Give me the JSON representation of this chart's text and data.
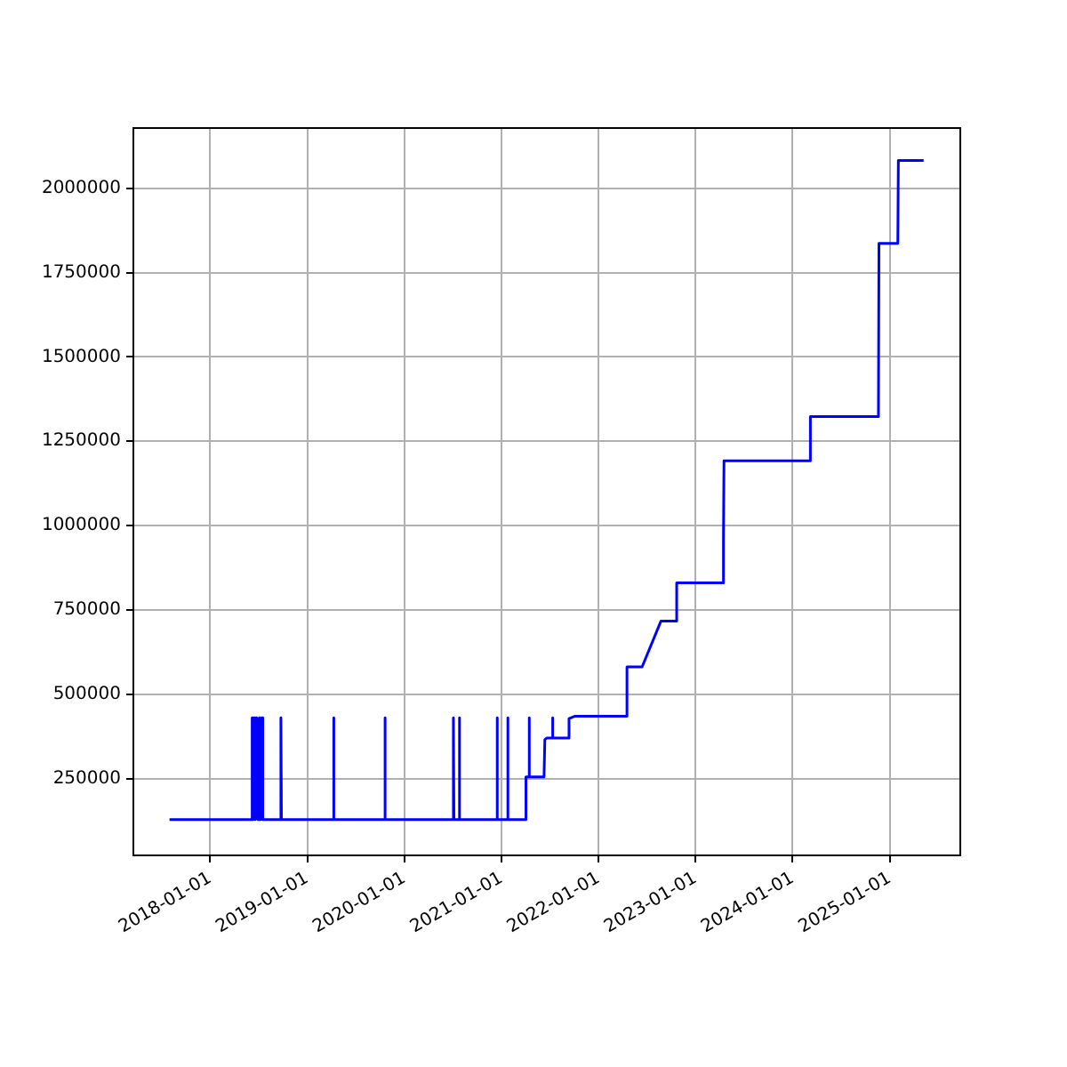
{
  "chart_data": {
    "type": "line",
    "x": [
      "2017-08-01",
      "2018-06-08",
      "2018-06-08",
      "2018-06-12",
      "2018-06-16",
      "2018-06-20",
      "2018-06-25",
      "2018-06-30",
      "2018-07-05",
      "2018-07-10",
      "2018-07-14",
      "2018-07-18",
      "2018-09-24",
      "2018-09-24",
      "2018-09-26",
      "2019-04-10",
      "2019-04-10",
      "2019-04-12",
      "2019-10-20",
      "2019-10-20",
      "2019-10-22",
      "2020-07-04",
      "2020-07-04",
      "2020-07-06",
      "2020-07-26",
      "2020-07-26",
      "2020-07-28",
      "2020-12-15",
      "2020-12-15",
      "2020-12-17",
      "2021-01-24",
      "2021-01-24",
      "2021-01-26",
      "2021-04-01",
      "2021-04-03",
      "2021-04-14",
      "2021-04-15",
      "2021-04-16",
      "2021-06-10",
      "2021-06-13",
      "2021-06-20",
      "2021-07-11",
      "2021-07-12",
      "2021-07-13",
      "2021-09-10",
      "2021-09-12",
      "2021-10-05",
      "2022-04-16",
      "2022-04-18",
      "2022-06-14",
      "2022-08-24",
      "2022-10-20",
      "2022-10-22",
      "2023-04-14",
      "2023-04-16",
      "2023-04-18",
      "2024-03-06",
      "2024-03-08",
      "2024-11-19",
      "2024-11-21",
      "2025-01-31",
      "2025-02-02",
      "2025-05-08"
    ],
    "series": [
      {
        "color": "#0000ff",
        "values": [
          128000,
          128000,
          430000,
          128000,
          430000,
          128000,
          430000,
          128000,
          430000,
          128000,
          430000,
          128000,
          128000,
          430000,
          128000,
          128000,
          430000,
          128000,
          128000,
          430000,
          128000,
          128000,
          430000,
          128000,
          128000,
          430000,
          128000,
          128000,
          430000,
          128000,
          128000,
          430000,
          128000,
          128000,
          255000,
          255000,
          430000,
          255000,
          255000,
          365000,
          370000,
          370000,
          430000,
          370000,
          370000,
          428000,
          435000,
          435000,
          581000,
          581000,
          717000,
          717000,
          830000,
          830000,
          960000,
          1192000,
          1192000,
          1323000,
          1323000,
          1837000,
          1837000,
          2083000,
          2083000
        ]
      }
    ],
    "xlim": [
      "2017-03-18",
      "2025-09-23"
    ],
    "xticks": [
      "2018-01-01",
      "2019-01-01",
      "2020-01-01",
      "2021-01-01",
      "2022-01-01",
      "2023-01-01",
      "2024-01-01",
      "2025-01-01"
    ],
    "ylim": [
      22000,
      2179000
    ],
    "yticks": [
      250000,
      500000,
      750000,
      1000000,
      1250000,
      1500000,
      1750000,
      2000000
    ],
    "grid": true,
    "legend": false,
    "marker": "none",
    "line_style": "solid"
  }
}
